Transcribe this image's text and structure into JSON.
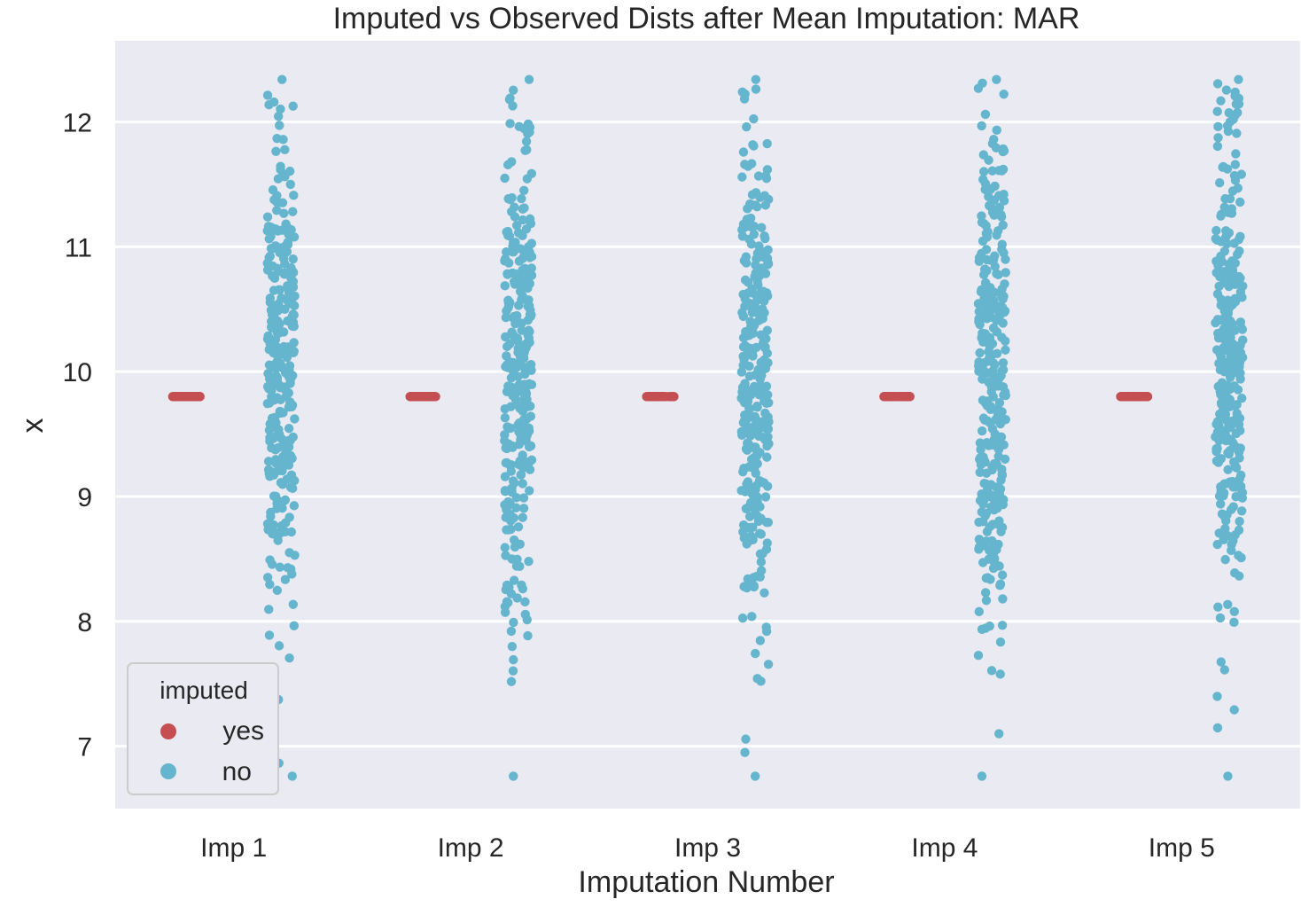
{
  "chart_data": {
    "type": "scatter",
    "subtype": "stripplot",
    "title": "Imputed vs Observed Dists after Mean Imputation: MAR",
    "xlabel": "Imputation Number",
    "ylabel": "x",
    "categories": [
      "Imp 1",
      "Imp 2",
      "Imp 3",
      "Imp 4",
      "Imp 5"
    ],
    "ylim": [
      6.5,
      12.65
    ],
    "yticks": [
      7,
      8,
      9,
      10,
      11,
      12
    ],
    "grid": true,
    "legend": {
      "title": "imputed",
      "placement": "lower-left",
      "entries": [
        {
          "label": "yes",
          "color": "#c44e52"
        },
        {
          "label": "no",
          "color": "#64b5cd"
        }
      ]
    },
    "colors": {
      "plot_background": "#eaeaf2",
      "grid": "#ffffff",
      "yes": "#c44e52",
      "no": "#64b5cd"
    },
    "series": [
      {
        "name": "yes",
        "color": "#c44e52",
        "value": 9.8,
        "count_per_category": 60,
        "values": [
          9.8,
          9.8,
          9.8,
          9.8,
          9.8
        ]
      },
      {
        "name": "no",
        "color": "#64b5cd",
        "count_per_category": 300,
        "min": 6.76,
        "max": 12.34,
        "center": 10.0
      }
    ]
  }
}
